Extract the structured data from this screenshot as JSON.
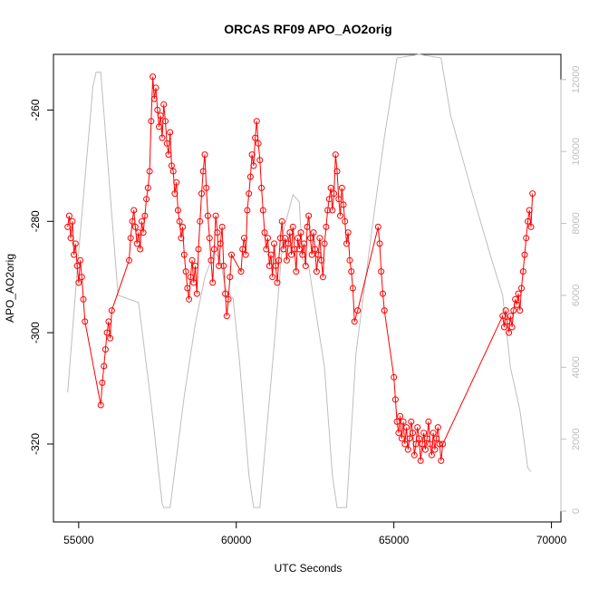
{
  "chart_data": {
    "type": "line",
    "title": "ORCAS RF09 APO_AO2orig",
    "xlabel": "UTC Seconds",
    "ylabel": "APO_AO2orig",
    "xlim": [
      54200,
      70300
    ],
    "ylim": [
      -334,
      -250
    ],
    "right_ylim": [
      -300,
      12700
    ],
    "x_ticks": [
      55000,
      60000,
      65000,
      70000
    ],
    "y_ticks": [
      -260,
      -280,
      -300,
      -320
    ],
    "right_ticks": [
      0,
      2000,
      4000,
      6000,
      8000,
      10000,
      12000
    ],
    "grid": false,
    "series": [
      {
        "role": "primary",
        "color": "#ff0000",
        "marker": "open-circle",
        "points": [
          [
            54650,
            -281
          ],
          [
            54700,
            -279
          ],
          [
            54750,
            -283
          ],
          [
            54800,
            -280
          ],
          [
            54850,
            -286
          ],
          [
            54900,
            -284
          ],
          [
            54950,
            -288
          ],
          [
            55000,
            -291
          ],
          [
            55050,
            -287
          ],
          [
            55100,
            -290
          ],
          [
            55150,
            -294
          ],
          [
            55200,
            -298
          ],
          [
            55700,
            -313
          ],
          [
            55750,
            -309
          ],
          [
            55800,
            -306
          ],
          [
            55850,
            -303
          ],
          [
            55900,
            -300
          ],
          [
            55950,
            -298
          ],
          [
            56000,
            -301
          ],
          [
            56050,
            -296
          ],
          [
            56600,
            -287
          ],
          [
            56650,
            -283
          ],
          [
            56700,
            -280
          ],
          [
            56750,
            -278
          ],
          [
            56800,
            -281
          ],
          [
            56850,
            -284
          ],
          [
            56900,
            -282
          ],
          [
            56950,
            -285
          ],
          [
            57000,
            -280
          ],
          [
            57050,
            -282
          ],
          [
            57100,
            -279
          ],
          [
            57150,
            -276
          ],
          [
            57200,
            -274
          ],
          [
            57250,
            -271
          ],
          [
            57300,
            -262
          ],
          [
            57350,
            -254
          ],
          [
            57400,
            -258
          ],
          [
            57450,
            -256
          ],
          [
            57500,
            -260
          ],
          [
            57550,
            -263
          ],
          [
            57600,
            -261
          ],
          [
            57650,
            -265
          ],
          [
            57700,
            -259
          ],
          [
            57750,
            -262
          ],
          [
            57800,
            -266
          ],
          [
            57850,
            -268
          ],
          [
            57900,
            -264
          ],
          [
            57950,
            -270
          ],
          [
            58000,
            -271
          ],
          [
            58050,
            -275
          ],
          [
            58100,
            -273
          ],
          [
            58150,
            -278
          ],
          [
            58200,
            -280
          ],
          [
            58250,
            -283
          ],
          [
            58300,
            -281
          ],
          [
            58350,
            -286
          ],
          [
            58400,
            -289
          ],
          [
            58450,
            -292
          ],
          [
            58500,
            -294
          ],
          [
            58550,
            -290
          ],
          [
            58600,
            -287
          ],
          [
            58650,
            -291
          ],
          [
            58700,
            -288
          ],
          [
            58750,
            -293
          ],
          [
            58800,
            -285
          ],
          [
            58850,
            -280
          ],
          [
            58900,
            -275
          ],
          [
            58950,
            -271
          ],
          [
            59000,
            -268
          ],
          [
            59050,
            -274
          ],
          [
            59100,
            -279
          ],
          [
            59150,
            -283
          ],
          [
            59200,
            -287
          ],
          [
            59250,
            -291
          ],
          [
            59300,
            -285
          ],
          [
            59350,
            -279
          ],
          [
            59400,
            -282
          ],
          [
            59450,
            -288
          ],
          [
            59500,
            -284
          ],
          [
            59550,
            -281
          ],
          [
            59600,
            -288
          ],
          [
            59650,
            -293
          ],
          [
            59700,
            -297
          ],
          [
            59750,
            -294
          ],
          [
            59800,
            -290
          ],
          [
            59850,
            -286
          ],
          [
            60150,
            -289
          ],
          [
            60200,
            -285
          ],
          [
            60250,
            -283
          ],
          [
            60300,
            -286
          ],
          [
            60350,
            -278
          ],
          [
            60400,
            -275
          ],
          [
            60450,
            -272
          ],
          [
            60500,
            -268
          ],
          [
            60550,
            -270
          ],
          [
            60600,
            -265
          ],
          [
            60650,
            -262
          ],
          [
            60700,
            -266
          ],
          [
            60750,
            -269
          ],
          [
            60800,
            -274
          ],
          [
            60850,
            -278
          ],
          [
            60900,
            -282
          ],
          [
            60950,
            -285
          ],
          [
            61000,
            -283
          ],
          [
            61050,
            -288
          ],
          [
            61100,
            -286
          ],
          [
            61150,
            -290
          ],
          [
            61200,
            -284
          ],
          [
            61250,
            -288
          ],
          [
            61300,
            -291
          ],
          [
            61350,
            -287
          ],
          [
            61400,
            -283
          ],
          [
            61450,
            -280
          ],
          [
            61500,
            -285
          ],
          [
            61550,
            -283
          ],
          [
            61600,
            -287
          ],
          [
            61650,
            -284
          ],
          [
            61700,
            -282
          ],
          [
            61750,
            -286
          ],
          [
            61800,
            -281
          ],
          [
            61850,
            -285
          ],
          [
            61900,
            -289
          ],
          [
            61950,
            -283
          ],
          [
            62000,
            -285
          ],
          [
            62050,
            -282
          ],
          [
            62100,
            -286
          ],
          [
            62150,
            -284
          ],
          [
            62200,
            -288
          ],
          [
            62250,
            -281
          ],
          [
            62300,
            -279
          ],
          [
            62350,
            -283
          ],
          [
            62400,
            -286
          ],
          [
            62450,
            -282
          ],
          [
            62500,
            -285
          ],
          [
            62550,
            -289
          ],
          [
            62600,
            -286
          ],
          [
            62650,
            -283
          ],
          [
            62700,
            -287
          ],
          [
            62750,
            -290
          ],
          [
            62800,
            -284
          ],
          [
            62850,
            -281
          ],
          [
            62900,
            -278
          ],
          [
            62950,
            -276
          ],
          [
            63000,
            -274
          ],
          [
            63050,
            -278
          ],
          [
            63100,
            -275
          ],
          [
            63150,
            -268
          ],
          [
            63200,
            -271
          ],
          [
            63250,
            -276
          ],
          [
            63300,
            -279
          ],
          [
            63350,
            -274
          ],
          [
            63400,
            -277
          ],
          [
            63450,
            -280
          ],
          [
            63500,
            -284
          ],
          [
            63550,
            -282
          ],
          [
            63600,
            -287
          ],
          [
            63650,
            -289
          ],
          [
            63700,
            -292
          ],
          [
            63750,
            -298
          ],
          [
            63850,
            -296
          ],
          [
            64500,
            -281
          ],
          [
            64550,
            -284
          ],
          [
            64600,
            -289
          ],
          [
            64650,
            -293
          ],
          [
            64700,
            -296
          ],
          [
            65000,
            -308
          ],
          [
            65050,
            -312
          ],
          [
            65100,
            -316
          ],
          [
            65150,
            -318
          ],
          [
            65200,
            -315
          ],
          [
            65250,
            -319
          ],
          [
            65300,
            -316
          ],
          [
            65350,
            -320
          ],
          [
            65400,
            -317
          ],
          [
            65450,
            -321
          ],
          [
            65500,
            -319
          ],
          [
            65550,
            -316
          ],
          [
            65600,
            -318
          ],
          [
            65650,
            -322
          ],
          [
            65700,
            -320
          ],
          [
            65750,
            -317
          ],
          [
            65800,
            -319
          ],
          [
            65850,
            -323
          ],
          [
            65900,
            -320
          ],
          [
            65950,
            -318
          ],
          [
            66000,
            -321
          ],
          [
            66050,
            -319
          ],
          [
            66100,
            -316
          ],
          [
            66150,
            -320
          ],
          [
            66200,
            -322
          ],
          [
            66250,
            -318
          ],
          [
            66300,
            -321
          ],
          [
            66350,
            -319
          ],
          [
            66400,
            -317
          ],
          [
            66450,
            -320
          ],
          [
            66500,
            -323
          ],
          [
            66550,
            -320
          ],
          [
            68450,
            -297
          ],
          [
            68500,
            -299
          ],
          [
            68550,
            -296
          ],
          [
            68600,
            -298
          ],
          [
            68650,
            -300
          ],
          [
            68700,
            -297
          ],
          [
            68750,
            -299
          ],
          [
            68800,
            -296
          ],
          [
            68850,
            -294
          ],
          [
            68900,
            -295
          ],
          [
            68950,
            -293
          ],
          [
            69000,
            -296
          ],
          [
            69050,
            -292
          ],
          [
            69100,
            -289
          ],
          [
            69150,
            -286
          ],
          [
            69200,
            -283
          ],
          [
            69250,
            -280
          ],
          [
            69300,
            -278
          ],
          [
            69350,
            -281
          ],
          [
            69400,
            -275
          ]
        ]
      },
      {
        "role": "right-axis",
        "color": "#bebebe",
        "points": [
          [
            54650,
            3300
          ],
          [
            55000,
            7200
          ],
          [
            55450,
            11800
          ],
          [
            55550,
            12200
          ],
          [
            55700,
            12200
          ],
          [
            56250,
            6000
          ],
          [
            56900,
            5800
          ],
          [
            57300,
            3000
          ],
          [
            57650,
            200
          ],
          [
            57700,
            100
          ],
          [
            57900,
            100
          ],
          [
            58350,
            3200
          ],
          [
            58700,
            5200
          ],
          [
            59000,
            6500
          ],
          [
            59300,
            7200
          ],
          [
            59500,
            7000
          ],
          [
            59650,
            6200
          ],
          [
            59900,
            5900
          ],
          [
            60100,
            4200
          ],
          [
            60400,
            1000
          ],
          [
            60550,
            100
          ],
          [
            60750,
            100
          ],
          [
            61200,
            4600
          ],
          [
            61500,
            7800
          ],
          [
            61800,
            8800
          ],
          [
            62000,
            8600
          ],
          [
            62100,
            7000
          ],
          [
            62300,
            6800
          ],
          [
            62800,
            4000
          ],
          [
            63050,
            1000
          ],
          [
            63200,
            100
          ],
          [
            63500,
            100
          ],
          [
            63800,
            4400
          ],
          [
            64300,
            7800
          ],
          [
            64700,
            10400
          ],
          [
            65100,
            12600
          ],
          [
            65800,
            12700
          ],
          [
            66500,
            12600
          ],
          [
            66800,
            11000
          ],
          [
            67500,
            8800
          ],
          [
            68100,
            7000
          ],
          [
            68450,
            6000
          ],
          [
            68700,
            4000
          ],
          [
            69000,
            2800
          ],
          [
            69250,
            1200
          ],
          [
            69350,
            1100
          ]
        ]
      }
    ]
  }
}
